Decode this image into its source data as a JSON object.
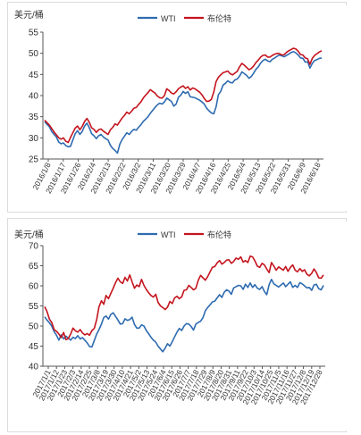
{
  "legend": {
    "wti": "WTI",
    "brent": "布伦特"
  },
  "colors": {
    "wti": "#2e6bb0",
    "brent": "#c4141e",
    "axis": "#555555",
    "text": "#333333"
  },
  "chart_data": [
    {
      "type": "line",
      "ylabel": "美元/桶",
      "ylim": [
        25,
        55
      ],
      "yticks": [
        25,
        30,
        35,
        40,
        45,
        50,
        55
      ],
      "xticks": [
        "2016/1/8",
        "2016/1/17",
        "2016/1/26",
        "2016/2/4",
        "2016/2/13",
        "2016/2/22",
        "2016/3/2",
        "2016/3/11",
        "2016/3/20",
        "2016/3/29",
        "2016/4/7",
        "2016/4/16",
        "2016/4/25",
        "2016/5/4",
        "2016/5/13",
        "2016/5/22",
        "2016/5/31",
        "2016/6/9",
        "2016/6/18"
      ],
      "legend_position": "top",
      "series": [
        {
          "name": "WTI",
          "key": "wti",
          "values": [
            33.8,
            33.2,
            32.6,
            31.5,
            30.8,
            30.2,
            29.0,
            28.6,
            28.8,
            28.2,
            27.9,
            28.0,
            29.5,
            31.0,
            31.7,
            30.8,
            31.5,
            32.8,
            33.5,
            32.4,
            31.0,
            30.5,
            29.8,
            30.5,
            30.8,
            30.2,
            29.8,
            29.5,
            28.2,
            27.5,
            27.0,
            26.4,
            28.5,
            29.6,
            30.4,
            31.2,
            30.8,
            31.5,
            32.0,
            31.8,
            32.5,
            33.1,
            33.9,
            34.4,
            35.0,
            35.8,
            36.5,
            37.2,
            37.8,
            38.2,
            38.0,
            38.5,
            39.4,
            39.0,
            38.6,
            37.5,
            38.0,
            39.6,
            40.1,
            41.0,
            40.5,
            40.9,
            39.7,
            39.6,
            39.5,
            39.2,
            38.9,
            38.5,
            38.0,
            37.0,
            36.4,
            35.9,
            35.7,
            37.3,
            40.2,
            41.0,
            42.5,
            42.9,
            43.5,
            43.1,
            43.0,
            43.7,
            43.9,
            44.6,
            45.6,
            45.2,
            44.8,
            44.1,
            44.5,
            45.3,
            46.2,
            46.8,
            47.7,
            48.3,
            48.6,
            48.2,
            48.0,
            48.6,
            48.9,
            49.3,
            49.6,
            49.4,
            49.2,
            49.5,
            49.8,
            50.2,
            50.4,
            50.1,
            49.6,
            48.9,
            48.8,
            47.9,
            48.0,
            46.5,
            47.6,
            48.3,
            48.5,
            48.8,
            48.9
          ]
        },
        {
          "name": "布伦特",
          "key": "brent",
          "values": [
            34.2,
            33.6,
            33.0,
            32.2,
            31.4,
            30.7,
            30.0,
            29.7,
            30.0,
            29.2,
            28.9,
            30.1,
            31.2,
            32.3,
            32.8,
            31.9,
            32.7,
            33.9,
            34.6,
            33.7,
            32.4,
            32.0,
            31.3,
            31.9,
            32.1,
            31.6,
            31.2,
            30.8,
            31.9,
            32.5,
            33.3,
            33.0,
            33.9,
            34.7,
            35.3,
            36.1,
            35.7,
            36.3,
            37.0,
            37.2,
            37.9,
            38.5,
            39.4,
            40.1,
            40.7,
            41.4,
            41.0,
            40.6,
            39.9,
            39.5,
            39.4,
            40.0,
            41.6,
            41.2,
            40.6,
            40.4,
            40.9,
            41.6,
            42.0,
            42.3,
            41.7,
            42.1,
            41.3,
            41.8,
            41.6,
            41.2,
            40.8,
            40.2,
            39.3,
            38.6,
            38.7,
            39.1,
            40.8,
            43.3,
            44.3,
            44.9,
            45.4,
            45.6,
            45.8,
            45.2,
            44.9,
            45.3,
            45.7,
            46.8,
            47.6,
            47.2,
            46.7,
            46.1,
            46.4,
            47.0,
            47.8,
            48.4,
            49.1,
            49.5,
            49.6,
            49.1,
            49.1,
            49.5,
            49.8,
            50.0,
            49.9,
            49.6,
            49.7,
            50.2,
            50.6,
            50.9,
            51.2,
            51.0,
            50.5,
            49.7,
            49.6,
            48.9,
            48.7,
            47.4,
            48.8,
            49.5,
            49.9,
            50.3,
            50.6
          ]
        }
      ]
    },
    {
      "type": "line",
      "ylabel": "美元/桶",
      "ylim": [
        40,
        70
      ],
      "yticks": [
        40,
        45,
        50,
        55,
        60,
        65,
        70
      ],
      "xticks": [
        "2017/1/1",
        "2017/1/12",
        "2017/1/23",
        "2017/2/3",
        "2017/2/14",
        "2017/2/25",
        "2017/3/8",
        "2017/3/19",
        "2017/3/30",
        "2017/4/10",
        "2017/4/21",
        "2017/5/2",
        "2017/5/13",
        "2017/5/24",
        "2017/6/4",
        "2017/6/15",
        "2017/6/26",
        "2017/7/7",
        "2017/7/18",
        "2017/7/29",
        "2017/8/9",
        "2017/8/20",
        "2017/8/31",
        "2017/9/11",
        "2017/9/22",
        "2017/10/3",
        "2017/10/14",
        "2017/10/25",
        "2017/11/5",
        "2017/11/16",
        "2017/11/27",
        "2017/12/8",
        "2017/12/19",
        "2017/12/28"
      ],
      "legend_position": "top",
      "series": [
        {
          "name": "WTI",
          "key": "wti",
          "values": [
            52.3,
            51.5,
            50.8,
            50.0,
            48.6,
            47.7,
            46.5,
            47.8,
            46.8,
            47.5,
            47.0,
            46.5,
            47.2,
            46.9,
            47.6,
            46.8,
            47.1,
            46.5,
            45.8,
            44.9,
            44.8,
            46.4,
            48.0,
            49.1,
            50.5,
            52.1,
            52.5,
            51.7,
            52.9,
            53.3,
            52.4,
            51.5,
            50.5,
            50.6,
            51.8,
            51.4,
            51.6,
            52.2,
            50.4,
            49.5,
            49.5,
            50.3,
            50.0,
            48.9,
            48.1,
            47.2,
            46.5,
            46.0,
            45.0,
            44.3,
            43.6,
            44.5,
            45.6,
            45.0,
            46.1,
            47.3,
            48.5,
            49.4,
            48.9,
            50.0,
            50.6,
            50.5,
            49.9,
            49.0,
            50.5,
            50.9,
            51.2,
            52.1,
            53.8,
            54.6,
            55.3,
            56.0,
            56.2,
            57.0,
            57.8,
            57.1,
            58.4,
            59.0,
            58.7,
            57.9,
            59.5,
            59.8,
            60.1,
            60.0,
            59.1,
            60.4,
            59.6,
            60.7,
            59.6,
            60.3,
            59.4,
            59.1,
            59.8,
            58.6,
            57.8,
            60.3,
            61.6,
            60.5,
            60.1,
            59.7,
            60.2,
            60.7,
            59.8,
            60.4,
            61.0,
            59.6,
            60.1,
            59.6,
            60.8,
            60.5,
            60.0,
            59.5,
            59.6,
            58.9,
            60.2,
            60.4,
            59.3,
            59.0,
            60.1
          ]
        },
        {
          "name": "布伦特",
          "key": "brent",
          "values": [
            54.8,
            53.6,
            51.7,
            50.9,
            49.1,
            48.7,
            48.0,
            47.1,
            48.4,
            46.6,
            46.9,
            48.0,
            49.5,
            48.8,
            48.5,
            49.1,
            48.3,
            47.8,
            48.1,
            47.7,
            48.9,
            49.4,
            51.6,
            54.8,
            56.3,
            55.4,
            57.6,
            56.8,
            58.1,
            59.4,
            60.8,
            61.9,
            61.0,
            60.6,
            62.1,
            61.2,
            62.7,
            61.0,
            59.4,
            60.2,
            59.8,
            61.6,
            60.1,
            59.1,
            58.3,
            57.6,
            57.2,
            57.9,
            55.9,
            55.0,
            54.6,
            54.1,
            54.7,
            56.1,
            55.6,
            57.0,
            57.4,
            56.8,
            57.3,
            58.9,
            59.0,
            60.1,
            59.6,
            59.0,
            59.4,
            61.4,
            62.6,
            62.0,
            61.4,
            62.3,
            63.5,
            64.6,
            64.8,
            65.7,
            66.3,
            65.4,
            65.8,
            66.4,
            66.5,
            65.6,
            66.1,
            66.9,
            66.6,
            67.2,
            65.9,
            66.3,
            65.8,
            67.4,
            67.2,
            66.2,
            64.9,
            64.6,
            65.6,
            65.2,
            64.2,
            63.3,
            65.8,
            64.9,
            63.9,
            64.7,
            64.3,
            63.9,
            64.8,
            63.6,
            64.6,
            65.2,
            63.9,
            63.5,
            64.3,
            63.6,
            64.0,
            62.9,
            62.5,
            63.1,
            64.2,
            63.3,
            62.0,
            61.9,
            62.7
          ]
        }
      ]
    }
  ]
}
